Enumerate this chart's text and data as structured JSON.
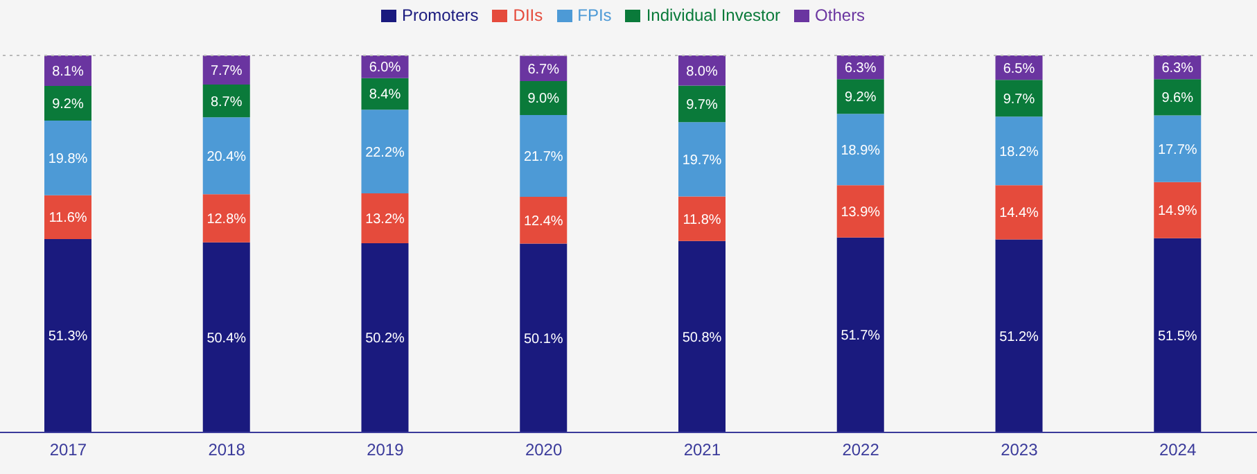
{
  "chart_data": {
    "type": "bar",
    "stacked": true,
    "categories": [
      "2017",
      "2018",
      "2019",
      "2020",
      "2021",
      "2022",
      "2023",
      "2024"
    ],
    "series": [
      {
        "name": "Promoters",
        "color": "#1a1a7e",
        "values": [
          51.3,
          50.4,
          50.2,
          50.1,
          50.8,
          51.7,
          51.2,
          51.5
        ],
        "value_labels": [
          "51.3%",
          "50.4%",
          "50.2%",
          "50.1%",
          "50.8%",
          "51.7%",
          "51.2%",
          "51.5%"
        ]
      },
      {
        "name": "DIIs",
        "color": "#e54b3c",
        "values": [
          11.6,
          12.8,
          13.2,
          12.4,
          11.8,
          13.9,
          14.4,
          14.9
        ],
        "value_labels": [
          "11.6%",
          "12.8%",
          "13.2%",
          "12.4%",
          "11.8%",
          "13.9%",
          "14.4%",
          "14.9%"
        ]
      },
      {
        "name": "FPIs",
        "color": "#4d9ad6",
        "values": [
          19.8,
          20.4,
          22.2,
          21.7,
          19.7,
          18.9,
          18.2,
          17.7
        ],
        "value_labels": [
          "19.8%",
          "20.4%",
          "22.2%",
          "21.7%",
          "19.7%",
          "18.9%",
          "18.2%",
          "17.7%"
        ]
      },
      {
        "name": "Individual Investor",
        "color": "#0a7a3a",
        "values": [
          9.2,
          8.7,
          8.4,
          9.0,
          9.7,
          9.2,
          9.7,
          9.6
        ],
        "value_labels": [
          "9.2%",
          "8.7%",
          "8.4%",
          "9.0%",
          "9.7%",
          "9.2%",
          "9.7%",
          "9.6%"
        ]
      },
      {
        "name": "Others",
        "color": "#6a35a0",
        "values": [
          8.1,
          7.7,
          6.0,
          6.7,
          8.0,
          6.3,
          6.5,
          6.3
        ],
        "value_labels": [
          "8.1%",
          "7.7%",
          "6.0%",
          "6.7%",
          "8.0%",
          "6.3%",
          "6.5%",
          "6.3%"
        ]
      }
    ],
    "ylim": [
      0,
      100
    ],
    "ref_lines": [
      {
        "axis": "y",
        "value": 100,
        "color": "#b8b8b8",
        "line_style": "dotted"
      }
    ],
    "tick_labels": "x",
    "legend": "top"
  }
}
